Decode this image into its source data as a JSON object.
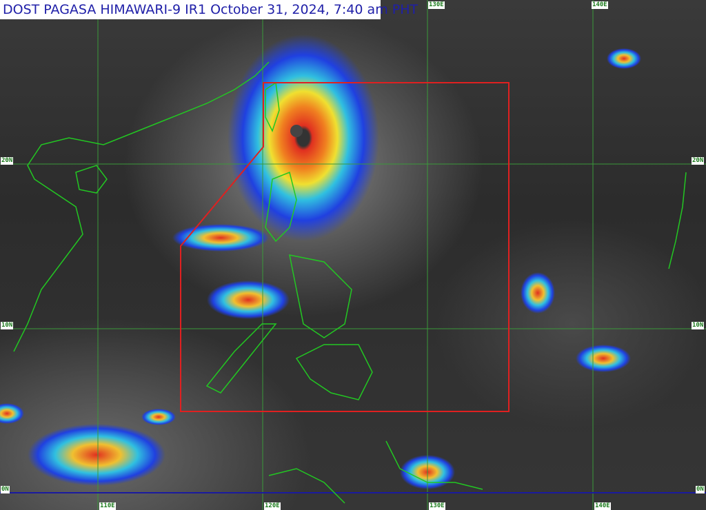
{
  "title": "DOST PAGASA HIMAWARI-9 IR1 October 31, 2024, 7:40 am PHT",
  "grid": {
    "lon_labels": [
      "110E",
      "120E",
      "130E",
      "140E"
    ],
    "top_lon_labels": [
      "130E",
      "140E"
    ],
    "lat_labels": [
      "20N",
      "10N",
      "0N"
    ]
  },
  "colors": {
    "coastline": "#22c822",
    "grid": "#3a9a3a",
    "equator": "#1a1aa0",
    "par_box": "#e02020",
    "title_text": "#1f1fa8"
  }
}
